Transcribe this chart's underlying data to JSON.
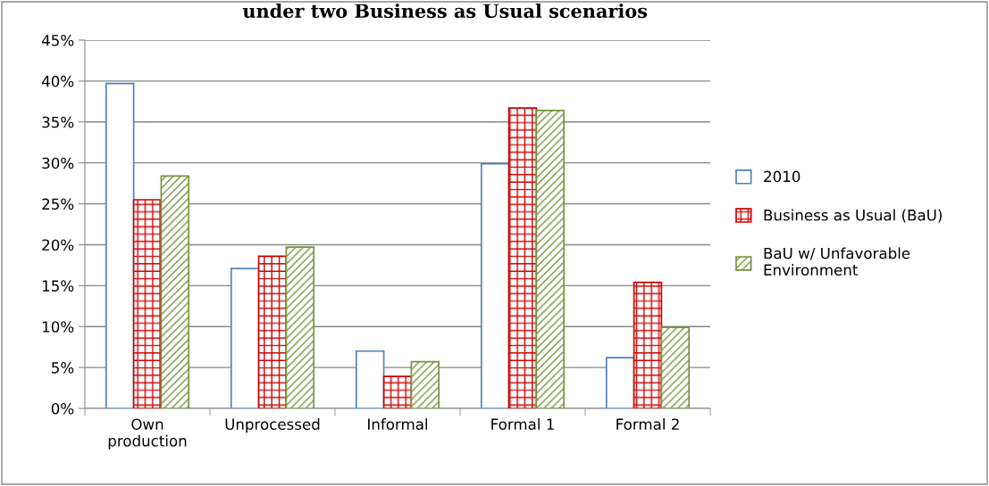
{
  "chart_data": {
    "type": "bar",
    "title": "under two Business as Usual scenarios",
    "categories": [
      "Own\nproduction",
      "Unprocessed",
      "Informal",
      "Formal 1",
      "Formal 2"
    ],
    "series": [
      {
        "name": "2010",
        "color": "#4f81bd",
        "values": [
          39.7,
          17.1,
          7.0,
          29.9,
          6.2
        ]
      },
      {
        "name": "Business as Usual (BaU)",
        "color": "#cc0000",
        "values": [
          25.5,
          18.6,
          3.9,
          36.7,
          15.4
        ]
      },
      {
        "name": "BaU w/ Unfavorable\nEnvironment",
        "color": "#77933c",
        "values": [
          28.4,
          19.7,
          5.7,
          36.4,
          9.9
        ]
      }
    ],
    "ylim": [
      0,
      45
    ],
    "yticks": [
      {
        "value": 0,
        "label": "0%"
      },
      {
        "value": 5,
        "label": "5%"
      },
      {
        "value": 10,
        "label": "10%"
      },
      {
        "value": 15,
        "label": "15%"
      },
      {
        "value": 20,
        "label": "20%"
      },
      {
        "value": 25,
        "label": "25%"
      },
      {
        "value": 30,
        "label": "30%"
      },
      {
        "value": 35,
        "label": "35%"
      },
      {
        "value": 40,
        "label": "40%"
      },
      {
        "value": 45,
        "label": "45%"
      }
    ],
    "grid": "y",
    "legend": "right"
  }
}
